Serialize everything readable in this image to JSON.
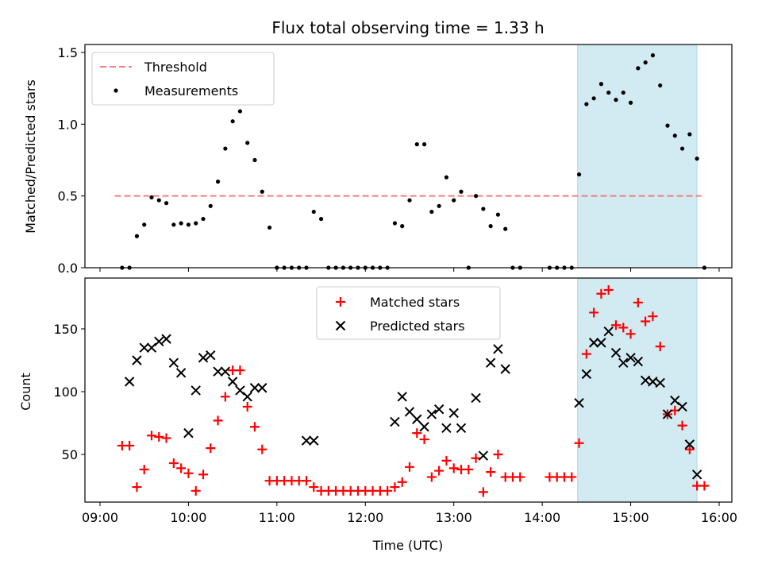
{
  "chart_data": [
    {
      "type": "scatter",
      "title": "Flux total observing time = 1.33 h",
      "xlabel": "",
      "ylabel": "Matched/Predicted stars",
      "xlim": [
        "09:00",
        "16:00"
      ],
      "ylim": [
        0,
        1.55
      ],
      "yticks": [
        "0.0",
        "0.5",
        "1.0",
        "1.5"
      ],
      "shaded_region": {
        "x": [
          "14:24",
          "15:45"
        ],
        "color": "#add8e6"
      },
      "legend": {
        "position": "top-left",
        "entries": [
          "Threshold",
          "Measurements"
        ]
      },
      "threshold": {
        "name": "Threshold",
        "y": 0.5,
        "x": [
          "09:10",
          "15:48"
        ],
        "color": "#f08080",
        "style": "dashed"
      },
      "series": [
        {
          "name": "Measurements",
          "color": "#000000",
          "marker": "dot",
          "points": [
            [
              "09:15",
              0.0
            ],
            [
              "09:20",
              0.0
            ],
            [
              "09:25",
              0.22
            ],
            [
              "09:30",
              0.3
            ],
            [
              "09:35",
              0.49
            ],
            [
              "09:40",
              0.47
            ],
            [
              "09:45",
              0.45
            ],
            [
              "09:50",
              0.3
            ],
            [
              "09:55",
              0.31
            ],
            [
              "10:00",
              0.3
            ],
            [
              "10:05",
              0.31
            ],
            [
              "10:10",
              0.34
            ],
            [
              "10:15",
              0.43
            ],
            [
              "10:20",
              0.6
            ],
            [
              "10:25",
              0.83
            ],
            [
              "10:30",
              1.02
            ],
            [
              "10:35",
              1.09
            ],
            [
              "10:40",
              0.87
            ],
            [
              "10:45",
              0.75
            ],
            [
              "10:50",
              0.53
            ],
            [
              "10:55",
              0.28
            ],
            [
              "11:00",
              0.0
            ],
            [
              "11:05",
              0.0
            ],
            [
              "11:10",
              0.0
            ],
            [
              "11:15",
              0.0
            ],
            [
              "11:20",
              0.0
            ],
            [
              "11:25",
              0.39
            ],
            [
              "11:30",
              0.34
            ],
            [
              "11:35",
              0.0
            ],
            [
              "11:40",
              0.0
            ],
            [
              "11:45",
              0.0
            ],
            [
              "11:50",
              0.0
            ],
            [
              "11:55",
              0.0
            ],
            [
              "12:00",
              0.0
            ],
            [
              "12:05",
              0.0
            ],
            [
              "12:10",
              0.0
            ],
            [
              "12:15",
              0.0
            ],
            [
              "12:20",
              0.31
            ],
            [
              "12:25",
              0.29
            ],
            [
              "12:30",
              0.47
            ],
            [
              "12:35",
              0.86
            ],
            [
              "12:40",
              0.86
            ],
            [
              "12:45",
              0.39
            ],
            [
              "12:50",
              0.43
            ],
            [
              "12:55",
              0.63
            ],
            [
              "13:00",
              0.47
            ],
            [
              "13:05",
              0.53
            ],
            [
              "13:10",
              0.0
            ],
            [
              "13:15",
              0.5
            ],
            [
              "13:20",
              0.41
            ],
            [
              "13:25",
              0.29
            ],
            [
              "13:30",
              0.37
            ],
            [
              "13:35",
              0.27
            ],
            [
              "13:40",
              0.0
            ],
            [
              "13:45",
              0.0
            ],
            [
              "14:05",
              0.0
            ],
            [
              "14:10",
              0.0
            ],
            [
              "14:15",
              0.0
            ],
            [
              "14:20",
              0.0
            ],
            [
              "14:25",
              0.65
            ],
            [
              "14:30",
              1.14
            ],
            [
              "14:35",
              1.18
            ],
            [
              "14:40",
              1.28
            ],
            [
              "14:45",
              1.22
            ],
            [
              "14:50",
              1.17
            ],
            [
              "14:55",
              1.22
            ],
            [
              "15:00",
              1.15
            ],
            [
              "15:05",
              1.39
            ],
            [
              "15:10",
              1.43
            ],
            [
              "15:15",
              1.48
            ],
            [
              "15:20",
              1.27
            ],
            [
              "15:25",
              0.99
            ],
            [
              "15:30",
              0.92
            ],
            [
              "15:35",
              0.83
            ],
            [
              "15:40",
              0.93
            ],
            [
              "15:45",
              0.76
            ],
            [
              "15:50",
              0.0
            ]
          ]
        }
      ]
    },
    {
      "type": "scatter",
      "title": "",
      "xlabel": "Time (UTC)",
      "ylabel": "Count",
      "xlim": [
        "09:00",
        "16:00"
      ],
      "ylim": [
        12,
        190
      ],
      "yticks": [
        "50",
        "100",
        "150"
      ],
      "xticks": [
        "09:00",
        "10:00",
        "11:00",
        "12:00",
        "13:00",
        "14:00",
        "15:00",
        "16:00"
      ],
      "shaded_region": {
        "x": [
          "14:24",
          "15:45"
        ],
        "color": "#add8e6"
      },
      "legend": {
        "position": "top-center",
        "entries": [
          "Matched stars",
          "Predicted stars"
        ]
      },
      "series": [
        {
          "name": "Matched stars",
          "color": "#ff0000",
          "marker": "plus",
          "points": [
            [
              "09:15",
              57
            ],
            [
              "09:20",
              57
            ],
            [
              "09:25",
              24
            ],
            [
              "09:30",
              38
            ],
            [
              "09:35",
              65
            ],
            [
              "09:40",
              64
            ],
            [
              "09:45",
              63
            ],
            [
              "09:50",
              43
            ],
            [
              "09:55",
              39
            ],
            [
              "10:00",
              35
            ],
            [
              "10:05",
              21
            ],
            [
              "10:10",
              34
            ],
            [
              "10:15",
              55
            ],
            [
              "10:20",
              77
            ],
            [
              "10:25",
              96
            ],
            [
              "10:30",
              117
            ],
            [
              "10:35",
              117
            ],
            [
              "10:40",
              88
            ],
            [
              "10:45",
              72
            ],
            [
              "10:50",
              54
            ],
            [
              "10:55",
              29
            ],
            [
              "11:00",
              29
            ],
            [
              "11:05",
              29
            ],
            [
              "11:10",
              29
            ],
            [
              "11:15",
              29
            ],
            [
              "11:20",
              29
            ],
            [
              "11:25",
              24
            ],
            [
              "11:30",
              21
            ],
            [
              "11:35",
              21
            ],
            [
              "11:40",
              21
            ],
            [
              "11:45",
              21
            ],
            [
              "11:50",
              21
            ],
            [
              "11:55",
              21
            ],
            [
              "12:00",
              21
            ],
            [
              "12:05",
              21
            ],
            [
              "12:10",
              21
            ],
            [
              "12:15",
              21
            ],
            [
              "12:20",
              24
            ],
            [
              "12:25",
              28
            ],
            [
              "12:30",
              40
            ],
            [
              "12:35",
              67
            ],
            [
              "12:40",
              62
            ],
            [
              "12:45",
              32
            ],
            [
              "12:50",
              37
            ],
            [
              "12:55",
              45
            ],
            [
              "13:00",
              39
            ],
            [
              "13:05",
              38
            ],
            [
              "13:10",
              38
            ],
            [
              "13:15",
              47
            ],
            [
              "13:20",
              20
            ],
            [
              "13:25",
              36
            ],
            [
              "13:30",
              50
            ],
            [
              "13:35",
              32
            ],
            [
              "13:40",
              32
            ],
            [
              "13:45",
              32
            ],
            [
              "14:05",
              32
            ],
            [
              "14:10",
              32
            ],
            [
              "14:15",
              32
            ],
            [
              "14:20",
              32
            ],
            [
              "14:25",
              59
            ],
            [
              "14:30",
              130
            ],
            [
              "14:35",
              163
            ],
            [
              "14:40",
              178
            ],
            [
              "14:45",
              181
            ],
            [
              "14:50",
              153
            ],
            [
              "14:55",
              151
            ],
            [
              "15:00",
              146
            ],
            [
              "15:05",
              171
            ],
            [
              "15:10",
              156
            ],
            [
              "15:15",
              160
            ],
            [
              "15:20",
              136
            ],
            [
              "15:25",
              82
            ],
            [
              "15:30",
              85
            ],
            [
              "15:35",
              73
            ],
            [
              "15:40",
              54
            ],
            [
              "15:45",
              25
            ],
            [
              "15:50",
              25
            ]
          ]
        },
        {
          "name": "Predicted stars",
          "color": "#000000",
          "marker": "x",
          "points": [
            [
              "09:20",
              108
            ],
            [
              "09:25",
              125
            ],
            [
              "09:30",
              135
            ],
            [
              "09:35",
              135
            ],
            [
              "09:40",
              140
            ],
            [
              "09:45",
              142
            ],
            [
              "09:50",
              123
            ],
            [
              "09:55",
              115
            ],
            [
              "10:00",
              67
            ],
            [
              "10:05",
              101
            ],
            [
              "10:10",
              127
            ],
            [
              "10:15",
              129
            ],
            [
              "10:20",
              116
            ],
            [
              "10:25",
              116
            ],
            [
              "10:30",
              108
            ],
            [
              "10:35",
              101
            ],
            [
              "10:40",
              96
            ],
            [
              "10:45",
              103
            ],
            [
              "10:50",
              103
            ],
            [
              "11:20",
              61
            ],
            [
              "11:25",
              61
            ],
            [
              "12:20",
              76
            ],
            [
              "12:25",
              96
            ],
            [
              "12:30",
              84
            ],
            [
              "12:35",
              78
            ],
            [
              "12:40",
              72
            ],
            [
              "12:45",
              82
            ],
            [
              "12:50",
              86
            ],
            [
              "12:55",
              71
            ],
            [
              "13:00",
              83
            ],
            [
              "13:05",
              71
            ],
            [
              "13:15",
              95
            ],
            [
              "13:20",
              49
            ],
            [
              "13:25",
              123
            ],
            [
              "13:30",
              134
            ],
            [
              "13:35",
              118
            ],
            [
              "14:25",
              91
            ],
            [
              "14:30",
              114
            ],
            [
              "14:35",
              139
            ],
            [
              "14:40",
              139
            ],
            [
              "14:45",
              148
            ],
            [
              "14:50",
              131
            ],
            [
              "14:55",
              123
            ],
            [
              "15:00",
              127
            ],
            [
              "15:05",
              124
            ],
            [
              "15:10",
              109
            ],
            [
              "15:15",
              108
            ],
            [
              "15:20",
              107
            ],
            [
              "15:25",
              82
            ],
            [
              "15:30",
              93
            ],
            [
              "15:35",
              88
            ],
            [
              "15:40",
              58
            ],
            [
              "15:45",
              34
            ]
          ]
        }
      ]
    }
  ]
}
